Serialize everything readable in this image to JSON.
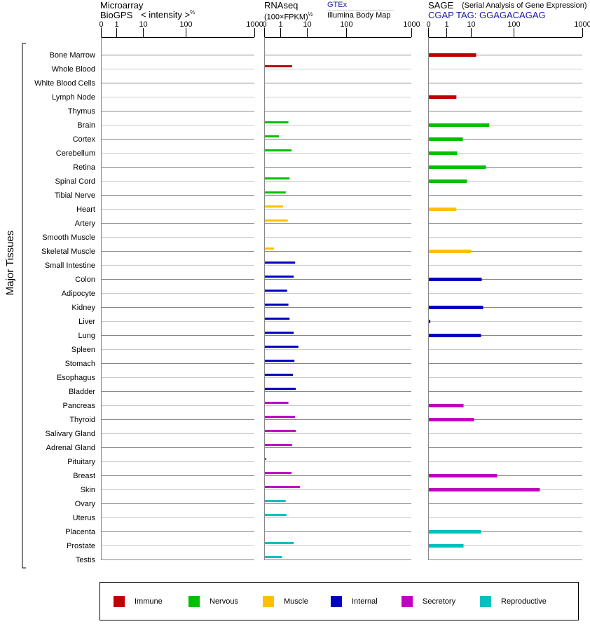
{
  "headers": {
    "microarray": {
      "title": "Microarray",
      "source": "BioGPS",
      "unit": "< intensity >",
      "unit_exp": "⅔"
    },
    "rnaseq": {
      "title": "RNAseq",
      "unit": "(100×FPKM)",
      "unit_exp": "½",
      "link1": "GTEx",
      "link2": "Illumina Body Map"
    },
    "sage": {
      "title": "SAGE",
      "subtitle": "(Serial Analysis of Gene Expression)",
      "tag": "CGAP TAG: GGAGACAGAG"
    }
  },
  "y_group_label": "Major Tissues",
  "legend": [
    {
      "label": "Immune",
      "color": "#c00000"
    },
    {
      "label": "Nervous",
      "color": "#00c000"
    },
    {
      "label": "Muscle",
      "color": "#ffc000"
    },
    {
      "label": "Internal",
      "color": "#0000c0"
    },
    {
      "label": "Secretory",
      "color": "#c000c0"
    },
    {
      "label": "Reproductive",
      "color": "#00c0c0"
    }
  ],
  "chart_data": {
    "type": "bar",
    "orientation": "horizontal",
    "x_ticks": [
      "0",
      "1",
      "10",
      "100",
      "1000"
    ],
    "xlim": [
      0,
      1000
    ],
    "categories": [
      "Bone Marrow",
      "Whole Blood",
      "White Blood Cells",
      "Lymph Node",
      "Thymus",
      "Brain",
      "Cortex",
      "Cerebellum",
      "Retina",
      "Spinal Cord",
      "Tibial Nerve",
      "Heart",
      "Artery",
      "Smooth Muscle",
      "Skeletal Muscle",
      "Small Intestine",
      "Colon",
      "Adipocyte",
      "Kidney",
      "Liver",
      "Lung",
      "Spleen",
      "Stomach",
      "Esophagus",
      "Bladder",
      "Pancreas",
      "Thyroid",
      "Salivary Gland",
      "Adrenal Gland",
      "Pituitary",
      "Breast",
      "Skin",
      "Ovary",
      "Uterus",
      "Placenta",
      "Prostate",
      "Testis"
    ],
    "category_group": [
      0,
      0,
      0,
      0,
      0,
      1,
      1,
      1,
      1,
      1,
      1,
      2,
      2,
      2,
      2,
      3,
      3,
      3,
      3,
      3,
      3,
      3,
      3,
      3,
      3,
      4,
      4,
      4,
      4,
      4,
      4,
      4,
      5,
      5,
      5,
      5,
      5
    ],
    "series": [
      {
        "name": "Microarray",
        "values": [
          null,
          null,
          null,
          null,
          null,
          null,
          null,
          null,
          null,
          null,
          null,
          null,
          null,
          null,
          null,
          null,
          null,
          null,
          null,
          null,
          null,
          null,
          null,
          null,
          null,
          null,
          null,
          null,
          null,
          null,
          null,
          null,
          null,
          null,
          null,
          null,
          null
        ]
      },
      {
        "name": "RNAseq",
        "values": [
          null,
          2.6,
          null,
          null,
          null,
          1.9,
          0.87,
          2.5,
          null,
          2.1,
          1.5,
          1.2,
          1.8,
          null,
          0.57,
          3.4,
          3.0,
          1.7,
          1.9,
          2.1,
          3.0,
          4.5,
          3.2,
          2.8,
          3.6,
          1.9,
          3.4,
          3.6,
          2.6,
          0.09,
          2.5,
          5.1,
          1.5,
          1.6,
          null,
          3.0,
          1.1
        ]
      },
      {
        "name": "SAGE",
        "values": [
          12.8,
          null,
          null,
          2.4,
          null,
          26,
          4.4,
          2.6,
          21.7,
          6.5,
          null,
          2.4,
          null,
          null,
          9.7,
          null,
          17.3,
          null,
          18.6,
          0.08,
          16.6,
          null,
          null,
          null,
          null,
          4.7,
          11.4,
          null,
          null,
          null,
          39.6,
          235,
          null,
          null,
          16.6,
          4.7,
          null
        ]
      }
    ]
  }
}
